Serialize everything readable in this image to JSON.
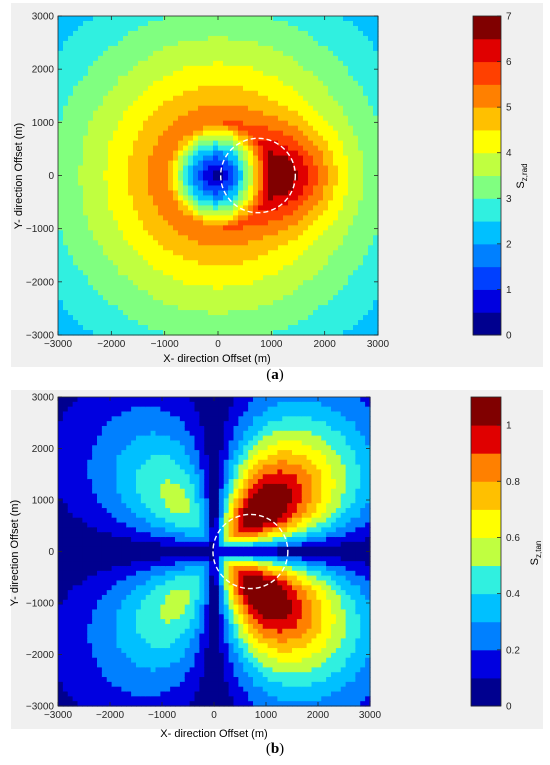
{
  "colormap": [
    "#00008f",
    "#0000e0",
    "#0040ff",
    "#0080ff",
    "#00c0ff",
    "#30f0e0",
    "#80ff80",
    "#c0ff40",
    "#ffff00",
    "#ffc000",
    "#ff8000",
    "#ff4000",
    "#e00000",
    "#800000"
  ],
  "chart_data": [
    {
      "id": "a",
      "type": "heatmap",
      "subtype": "filled-contour",
      "caption": "a",
      "xlabel": "X- direction Offset (m)",
      "ylabel": "Y- direction Offset (m)",
      "xlim": [
        -3000,
        3000
      ],
      "ylim": [
        -3000,
        3000
      ],
      "xticks": [
        -3000,
        -2000,
        -1000,
        0,
        1000,
        2000,
        3000
      ],
      "yticks": [
        -3000,
        -2000,
        -1000,
        0,
        1000,
        2000,
        3000
      ],
      "colorbar": {
        "label_main": "S",
        "label_sub": "z,rad",
        "range": [
          0,
          7
        ],
        "ticks": [
          0,
          1,
          2,
          3,
          4,
          5,
          6,
          7
        ],
        "levels": 14
      },
      "overlay_circle": {
        "center": [
          750,
          0
        ],
        "radius": 700,
        "style": "white-dashed"
      }
    },
    {
      "id": "b",
      "type": "heatmap",
      "subtype": "filled-contour",
      "caption": "b",
      "xlabel": "X- direction Offset (m)",
      "ylabel": "Y- direction Offset (m)",
      "xlim": [
        -3000,
        3000
      ],
      "ylim": [
        -3000,
        3000
      ],
      "xticks": [
        -3000,
        -2000,
        -1000,
        0,
        1000,
        2000,
        3000
      ],
      "yticks": [
        -3000,
        -2000,
        -1000,
        0,
        1000,
        2000,
        3000
      ],
      "colorbar": {
        "label_main": "S",
        "label_sub": "z,tan",
        "range": [
          0,
          1.1
        ],
        "ticks": [
          0,
          0.2,
          0.4,
          0.6,
          0.8,
          1
        ],
        "levels": 11
      },
      "overlay_circle": {
        "center": [
          700,
          0
        ],
        "radius": 720,
        "style": "white-dashed"
      }
    }
  ]
}
